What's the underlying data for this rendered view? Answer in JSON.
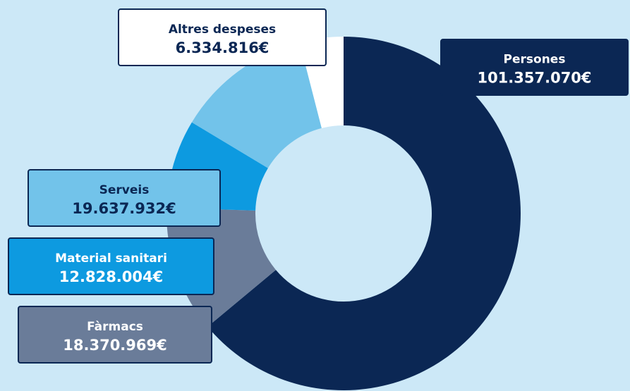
{
  "chart_data": {
    "type": "donut",
    "categories": [
      "Persones",
      "Fàrmacs",
      "Material sanitari",
      "Serveis",
      "Altres despeses"
    ],
    "values": [
      101357070,
      18370969,
      12828004,
      19637932,
      6334816
    ],
    "value_labels": [
      "101.357.070€",
      "18.370.969€",
      "12.828.004€",
      "19.637.932€",
      "6.334.816€"
    ],
    "colors": [
      "#0b2754",
      "#6a7c99",
      "#0d9ae0",
      "#72c3ea",
      "#ffffff"
    ]
  }
}
